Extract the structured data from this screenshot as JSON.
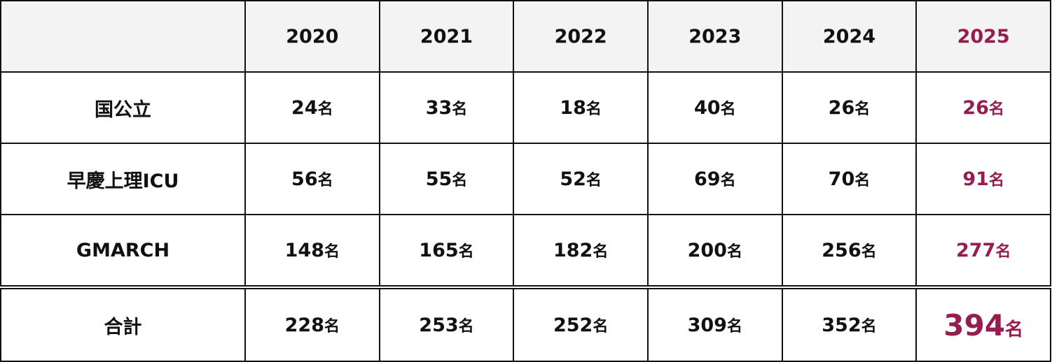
{
  "chart_data": {
    "type": "table",
    "columns": [
      "",
      "2020",
      "2021",
      "2022",
      "2023",
      "2024",
      "2025"
    ],
    "unit": "名",
    "highlight_color": "#951d4f",
    "highlight_column": "2025",
    "rows": [
      {
        "label": "国公立",
        "values": [
          24,
          33,
          18,
          40,
          26,
          26
        ]
      },
      {
        "label": "早慶上理ICU",
        "values": [
          56,
          55,
          52,
          69,
          70,
          91
        ]
      },
      {
        "label": "GMARCH",
        "values": [
          148,
          165,
          182,
          200,
          256,
          277
        ]
      }
    ],
    "total": {
      "label": "合計",
      "values": [
        228,
        253,
        252,
        309,
        352,
        394
      ]
    }
  }
}
